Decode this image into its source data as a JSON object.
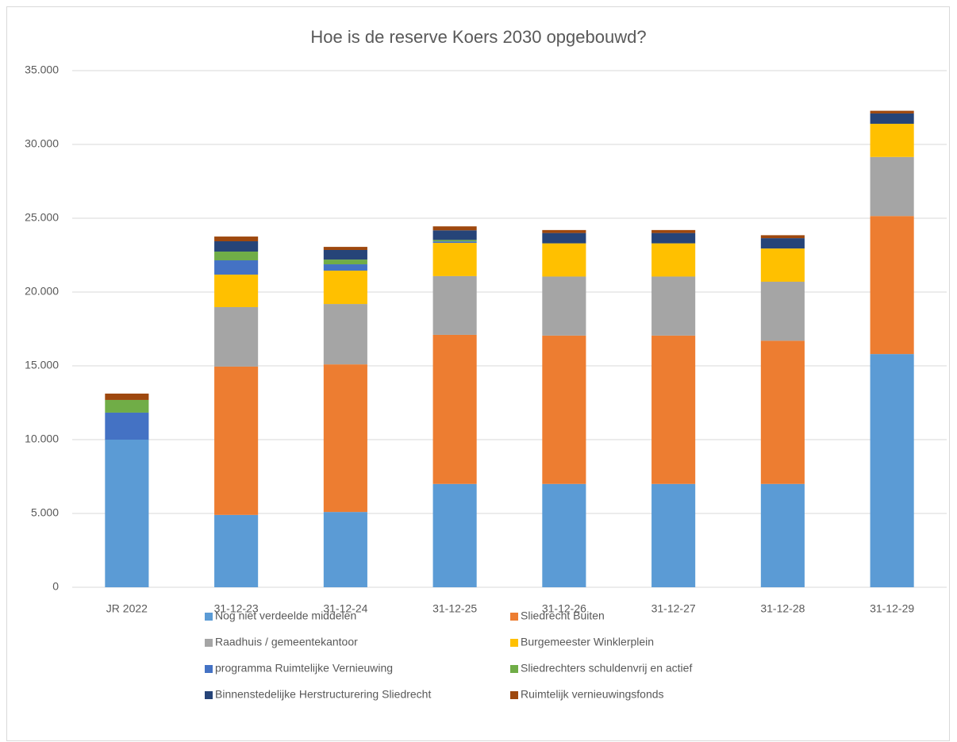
{
  "chart_data": {
    "type": "stacked_bar",
    "title": "Hoe is de reserve Koers 2030 opgebouwd?",
    "categories": [
      "JR 2022",
      "31-12-23",
      "31-12-24",
      "31-12-25",
      "31-12-26",
      "31-12-27",
      "31-12-28",
      "31-12-29"
    ],
    "series": [
      {
        "name": "Nog niet verdeelde middelen",
        "color": "#5b9bd5",
        "values": [
          10000,
          4900,
          5100,
          7000,
          7000,
          7000,
          7000,
          15800
        ]
      },
      {
        "name": "Sliedrecht Buiten",
        "color": "#ed7d31",
        "values": [
          0,
          10050,
          10000,
          10100,
          10050,
          10050,
          9700,
          9350
        ]
      },
      {
        "name": "Raadhuis / gemeentekantoor",
        "color": "#a5a5a5",
        "values": [
          0,
          4030,
          4090,
          3980,
          4000,
          4000,
          4000,
          4000
        ]
      },
      {
        "name": "Burgemeester Winklerplein",
        "color": "#ffc000",
        "values": [
          0,
          2200,
          2260,
          2250,
          2250,
          2250,
          2250,
          2250
        ]
      },
      {
        "name": "programma Ruimtelijke Vernieuwing",
        "color": "#4472c4",
        "values": [
          1830,
          970,
          430,
          100,
          0,
          0,
          0,
          0
        ]
      },
      {
        "name": "Sliedrechters schuldenvrij en actief",
        "color": "#70ad47",
        "values": [
          860,
          590,
          320,
          100,
          0,
          0,
          0,
          0
        ]
      },
      {
        "name": "Binnenstedelijke Herstructurering Sliedrecht",
        "color": "#264478",
        "values": [
          0,
          700,
          650,
          650,
          700,
          700,
          700,
          700
        ]
      },
      {
        "name": "Ruimtelijk vernieuwingsfonds",
        "color": "#9e480e",
        "values": [
          430,
          320,
          210,
          270,
          200,
          200,
          200,
          180
        ]
      }
    ],
    "ylim": [
      0,
      35000
    ],
    "yticks": [
      0,
      {
        "value": 5000,
        "label": "5.000"
      },
      {
        "value": 10000,
        "label": "10.000"
      },
      {
        "value": 15000,
        "label": "15.000"
      },
      {
        "value": 20000,
        "label": "20.000"
      },
      {
        "value": 25000,
        "label": "25.000"
      },
      {
        "value": 30000,
        "label": "30.000"
      },
      {
        "value": 35000,
        "label": "35.000"
      }
    ],
    "grid": true
  }
}
